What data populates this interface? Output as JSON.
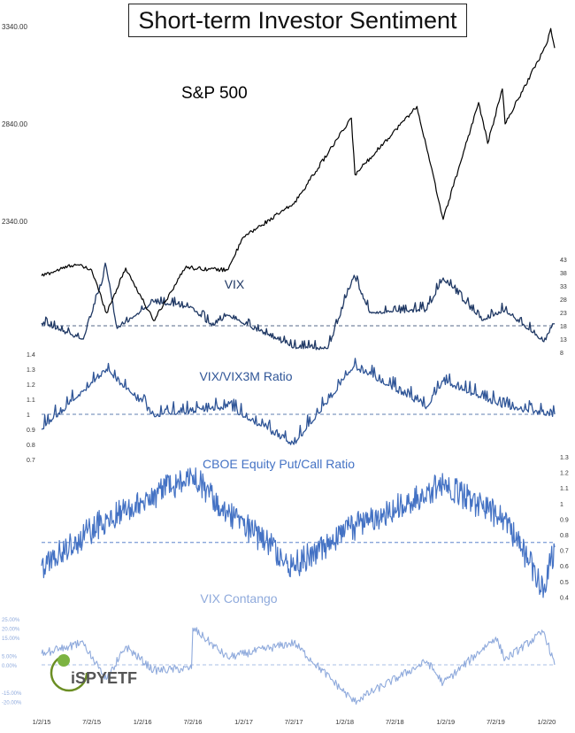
{
  "chart_data": [
    {
      "type": "line",
      "title": "Short-term Investor Sentiment",
      "series": [
        {
          "name": "S&P 500",
          "color": "#000000"
        }
      ],
      "y_ticks": [
        "3340.00",
        "2840.00",
        "2340.00"
      ],
      "x_ticks": [
        "1/2/15",
        "7/2/15",
        "1/2/16",
        "7/2/16",
        "1/2/17",
        "7/2/17",
        "1/2/18",
        "7/2/18",
        "1/2/19",
        "7/2/19",
        "1/2/20"
      ],
      "ylim": [
        1810,
        3400
      ],
      "key_points": [
        {
          "x": "1/2/15",
          "y": 2060
        },
        {
          "x": "5/2/15",
          "y": 2120
        },
        {
          "x": "7/2/15",
          "y": 2090
        },
        {
          "x": "8/25/15",
          "y": 1870
        },
        {
          "x": "11/2/15",
          "y": 2100
        },
        {
          "x": "2/11/16",
          "y": 1830
        },
        {
          "x": "6/8/16",
          "y": 2110
        },
        {
          "x": "7/2/16",
          "y": 2100
        },
        {
          "x": "11/3/16",
          "y": 2090
        },
        {
          "x": "1/2/17",
          "y": 2260
        },
        {
          "x": "7/2/17",
          "y": 2430
        },
        {
          "x": "1/26/18",
          "y": 2870
        },
        {
          "x": "2/8/18",
          "y": 2580
        },
        {
          "x": "9/20/18",
          "y": 2930
        },
        {
          "x": "12/24/18",
          "y": 2350
        },
        {
          "x": "5/1/19",
          "y": 2950
        },
        {
          "x": "6/3/19",
          "y": 2740
        },
        {
          "x": "7/26/19",
          "y": 3020
        },
        {
          "x": "8/5/19",
          "y": 2840
        },
        {
          "x": "1/2/20",
          "y": 3250
        },
        {
          "x": "1/17/20",
          "y": 3330
        },
        {
          "x": "1/31/20",
          "y": 3230
        }
      ]
    },
    {
      "type": "line",
      "series": [
        {
          "name": "VIX",
          "color": "#1f3864"
        }
      ],
      "y_ticks": [
        "43",
        "38",
        "33",
        "28",
        "23",
        "18",
        "13",
        "8"
      ],
      "reference_line": 18,
      "key_points": [
        {
          "x": "1/2/15",
          "y": 19
        },
        {
          "x": "6/2/15",
          "y": 13
        },
        {
          "x": "8/24/15",
          "y": 40
        },
        {
          "x": "10/2/15",
          "y": 17
        },
        {
          "x": "2/11/16",
          "y": 27
        },
        {
          "x": "6/27/16",
          "y": 25
        },
        {
          "x": "9/9/16",
          "y": 18
        },
        {
          "x": "11/4/16",
          "y": 22
        },
        {
          "x": "7/2/17",
          "y": 10
        },
        {
          "x": "11/2/17",
          "y": 9.5
        },
        {
          "x": "2/5/18",
          "y": 37
        },
        {
          "x": "4/2/18",
          "y": 23
        },
        {
          "x": "10/26/18",
          "y": 24
        },
        {
          "x": "12/24/18",
          "y": 36
        },
        {
          "x": "5/13/19",
          "y": 20
        },
        {
          "x": "8/5/19",
          "y": 24
        },
        {
          "x": "12/23/19",
          "y": 12
        },
        {
          "x": "1/31/20",
          "y": 18.8
        }
      ]
    },
    {
      "type": "line",
      "series": [
        {
          "name": "VIX/VIX3M Ratio",
          "color": "#2f5597"
        }
      ],
      "y_ticks": [
        "1.4",
        "1.3",
        "1.2",
        "1.1",
        "1",
        "0.9",
        "0.8",
        "0.7"
      ],
      "reference_line": 1.0,
      "key_points": [
        {
          "x": "1/2/15",
          "y": 0.9
        },
        {
          "x": "8/24/15",
          "y": 1.3
        },
        {
          "x": "2/11/16",
          "y": 1.0
        },
        {
          "x": "6/27/16",
          "y": 1.02
        },
        {
          "x": "11/4/16",
          "y": 1.05
        },
        {
          "x": "7/2/17",
          "y": 0.8
        },
        {
          "x": "2/5/18",
          "y": 1.32
        },
        {
          "x": "10/26/18",
          "y": 1.05
        },
        {
          "x": "12/24/18",
          "y": 1.22
        },
        {
          "x": "8/5/19",
          "y": 1.05
        },
        {
          "x": "1/31/20",
          "y": 1.0
        }
      ]
    },
    {
      "type": "line",
      "series": [
        {
          "name": "CBOE Equity Put/Call Ratio",
          "color": "#4472c4"
        }
      ],
      "y_ticks": [
        "1.3",
        "1.2",
        "1.1",
        "1",
        "0.9",
        "0.8",
        "0.7",
        "0.6",
        "0.5",
        "0.4"
      ],
      "reference_line": 0.75,
      "key_points": [
        {
          "x": "1/2/15",
          "y": 0.6
        },
        {
          "x": "8/24/15",
          "y": 0.9
        },
        {
          "x": "6/27/16",
          "y": 1.18
        },
        {
          "x": "11/4/16",
          "y": 0.95
        },
        {
          "x": "7/2/17",
          "y": 0.6
        },
        {
          "x": "2/5/18",
          "y": 0.85
        },
        {
          "x": "12/24/18",
          "y": 1.12
        },
        {
          "x": "8/5/19",
          "y": 0.9
        },
        {
          "x": "12/23/19",
          "y": 0.45
        },
        {
          "x": "1/31/20",
          "y": 0.72
        }
      ]
    },
    {
      "type": "line",
      "series": [
        {
          "name": "VIX Contango",
          "color": "#8faadc"
        }
      ],
      "y_ticks": [
        "25.00%",
        "20.00%",
        "15.00%",
        "5.00%",
        "0.00%",
        "-15.00%",
        "-20.00%"
      ],
      "reference_line": 0,
      "key_points": [
        {
          "x": "1/2/15",
          "y": 6
        },
        {
          "x": "6/2/15",
          "y": 12
        },
        {
          "x": "8/24/15",
          "y": -8
        },
        {
          "x": "11/2/15",
          "y": 10
        },
        {
          "x": "2/11/16",
          "y": -3
        },
        {
          "x": "6/27/16",
          "y": -2
        },
        {
          "x": "7/2/16",
          "y": 20
        },
        {
          "x": "11/4/16",
          "y": 4
        },
        {
          "x": "7/2/17",
          "y": 12
        },
        {
          "x": "2/5/18",
          "y": -20
        },
        {
          "x": "10/26/18",
          "y": 2
        },
        {
          "x": "12/24/18",
          "y": -10
        },
        {
          "x": "7/2/19",
          "y": 15
        },
        {
          "x": "8/5/19",
          "y": 3
        },
        {
          "x": "12/23/19",
          "y": 18
        },
        {
          "x": "1/31/20",
          "y": 0
        }
      ]
    }
  ],
  "logo": {
    "text": "iSPYETF"
  }
}
